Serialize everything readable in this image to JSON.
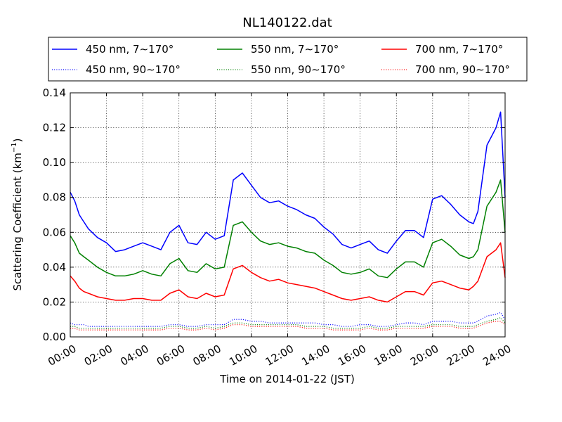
{
  "chart_data": {
    "type": "line",
    "title": "NL140122.dat",
    "xlabel": "Time on 2014-01-22 (JST)",
    "ylabel_main": "Scattering Coefficient (km",
    "ylabel_sup": "−1",
    "ylabel_end": ")",
    "xlim": [
      0,
      24
    ],
    "ylim": [
      0.0,
      0.14
    ],
    "x_unit": "hours",
    "grid": true,
    "legend_position": "top",
    "x_ticks": [
      {
        "value": 0,
        "label": "00:00"
      },
      {
        "value": 2,
        "label": "02:00"
      },
      {
        "value": 4,
        "label": "04:00"
      },
      {
        "value": 6,
        "label": "06:00"
      },
      {
        "value": 8,
        "label": "08:00"
      },
      {
        "value": 10,
        "label": "10:00"
      },
      {
        "value": 12,
        "label": "12:00"
      },
      {
        "value": 14,
        "label": "14:00"
      },
      {
        "value": 16,
        "label": "16:00"
      },
      {
        "value": 18,
        "label": "18:00"
      },
      {
        "value": 20,
        "label": "20:00"
      },
      {
        "value": 22,
        "label": "22:00"
      },
      {
        "value": 24,
        "label": "24:00"
      }
    ],
    "y_ticks": [
      {
        "value": 0.0,
        "label": "0.00"
      },
      {
        "value": 0.02,
        "label": "0.02"
      },
      {
        "value": 0.04,
        "label": "0.04"
      },
      {
        "value": 0.06,
        "label": "0.06"
      },
      {
        "value": 0.08,
        "label": "0.08"
      },
      {
        "value": 0.1,
        "label": "0.10"
      },
      {
        "value": 0.12,
        "label": "0.12"
      },
      {
        "value": 0.14,
        "label": "0.14"
      }
    ],
    "x": [
      0,
      0.25,
      0.5,
      0.75,
      1,
      1.5,
      2,
      2.5,
      3,
      3.5,
      4,
      4.5,
      5,
      5.5,
      6,
      6.5,
      7,
      7.5,
      8,
      8.5,
      9,
      9.5,
      10,
      10.5,
      11,
      11.5,
      12,
      12.5,
      13,
      13.5,
      14,
      14.5,
      15,
      15.5,
      16,
      16.5,
      17,
      17.5,
      18,
      18.5,
      19,
      19.5,
      20,
      20.5,
      21,
      21.5,
      22,
      22.25,
      22.5,
      23,
      23.5,
      23.75,
      24
    ],
    "series": [
      {
        "name": "450 nm, 7∼170°",
        "color": "#0000ff",
        "style": "solid",
        "values": [
          0.083,
          0.078,
          0.07,
          0.066,
          0.062,
          0.057,
          0.054,
          0.049,
          0.05,
          0.052,
          0.054,
          0.052,
          0.05,
          0.06,
          0.064,
          0.054,
          0.053,
          0.06,
          0.056,
          0.058,
          0.09,
          0.094,
          0.087,
          0.08,
          0.077,
          0.078,
          0.075,
          0.073,
          0.07,
          0.068,
          0.063,
          0.059,
          0.053,
          0.051,
          0.053,
          0.055,
          0.05,
          0.048,
          0.055,
          0.061,
          0.061,
          0.057,
          0.079,
          0.081,
          0.076,
          0.07,
          0.066,
          0.065,
          0.072,
          0.11,
          0.12,
          0.129,
          0.08
        ]
      },
      {
        "name": "550 nm, 7∼170°",
        "color": "#008000",
        "style": "solid",
        "values": [
          0.058,
          0.054,
          0.048,
          0.046,
          0.044,
          0.04,
          0.037,
          0.035,
          0.035,
          0.036,
          0.038,
          0.036,
          0.035,
          0.042,
          0.045,
          0.038,
          0.037,
          0.042,
          0.039,
          0.04,
          0.064,
          0.066,
          0.06,
          0.055,
          0.053,
          0.054,
          0.052,
          0.051,
          0.049,
          0.048,
          0.044,
          0.041,
          0.037,
          0.036,
          0.037,
          0.039,
          0.035,
          0.034,
          0.039,
          0.043,
          0.043,
          0.04,
          0.054,
          0.056,
          0.052,
          0.047,
          0.045,
          0.046,
          0.05,
          0.075,
          0.083,
          0.09,
          0.06
        ]
      },
      {
        "name": "700 nm, 7∼170°",
        "color": "#ff0000",
        "style": "solid",
        "values": [
          0.035,
          0.032,
          0.028,
          0.026,
          0.025,
          0.023,
          0.022,
          0.021,
          0.021,
          0.022,
          0.022,
          0.021,
          0.021,
          0.025,
          0.027,
          0.023,
          0.022,
          0.025,
          0.023,
          0.024,
          0.039,
          0.041,
          0.037,
          0.034,
          0.032,
          0.033,
          0.031,
          0.03,
          0.029,
          0.028,
          0.026,
          0.024,
          0.022,
          0.021,
          0.022,
          0.023,
          0.021,
          0.02,
          0.023,
          0.026,
          0.026,
          0.024,
          0.031,
          0.032,
          0.03,
          0.028,
          0.027,
          0.029,
          0.032,
          0.046,
          0.05,
          0.054,
          0.034
        ]
      },
      {
        "name": "450 nm, 90∼170°",
        "color": "#0000ff",
        "style": "dotted",
        "values": [
          0.008,
          0.007,
          0.007,
          0.007,
          0.006,
          0.006,
          0.006,
          0.006,
          0.006,
          0.006,
          0.006,
          0.006,
          0.006,
          0.007,
          0.007,
          0.006,
          0.006,
          0.007,
          0.007,
          0.007,
          0.01,
          0.01,
          0.009,
          0.009,
          0.008,
          0.008,
          0.008,
          0.008,
          0.008,
          0.008,
          0.007,
          0.007,
          0.006,
          0.006,
          0.007,
          0.007,
          0.006,
          0.006,
          0.007,
          0.008,
          0.008,
          0.007,
          0.009,
          0.009,
          0.009,
          0.008,
          0.008,
          0.008,
          0.009,
          0.012,
          0.013,
          0.014,
          0.01
        ]
      },
      {
        "name": "550 nm, 90∼170°",
        "color": "#008000",
        "style": "dotted",
        "values": [
          0.006,
          0.006,
          0.005,
          0.005,
          0.005,
          0.005,
          0.005,
          0.005,
          0.005,
          0.005,
          0.005,
          0.005,
          0.005,
          0.006,
          0.006,
          0.005,
          0.005,
          0.006,
          0.005,
          0.006,
          0.008,
          0.008,
          0.007,
          0.007,
          0.007,
          0.007,
          0.007,
          0.007,
          0.006,
          0.006,
          0.006,
          0.005,
          0.005,
          0.005,
          0.005,
          0.006,
          0.005,
          0.005,
          0.006,
          0.006,
          0.006,
          0.006,
          0.007,
          0.007,
          0.007,
          0.006,
          0.006,
          0.006,
          0.007,
          0.009,
          0.01,
          0.011,
          0.008
        ]
      },
      {
        "name": "700 nm, 90∼170°",
        "color": "#ff0000",
        "style": "dotted",
        "values": [
          0.005,
          0.005,
          0.004,
          0.004,
          0.004,
          0.004,
          0.004,
          0.004,
          0.004,
          0.004,
          0.004,
          0.004,
          0.004,
          0.005,
          0.005,
          0.004,
          0.004,
          0.005,
          0.004,
          0.005,
          0.007,
          0.007,
          0.006,
          0.006,
          0.006,
          0.006,
          0.006,
          0.006,
          0.005,
          0.005,
          0.005,
          0.004,
          0.004,
          0.004,
          0.004,
          0.005,
          0.004,
          0.004,
          0.005,
          0.005,
          0.005,
          0.005,
          0.006,
          0.006,
          0.006,
          0.005,
          0.005,
          0.005,
          0.006,
          0.008,
          0.009,
          0.009,
          0.007
        ]
      }
    ],
    "legend_order": [
      0,
      1,
      2,
      3,
      4,
      5
    ]
  }
}
